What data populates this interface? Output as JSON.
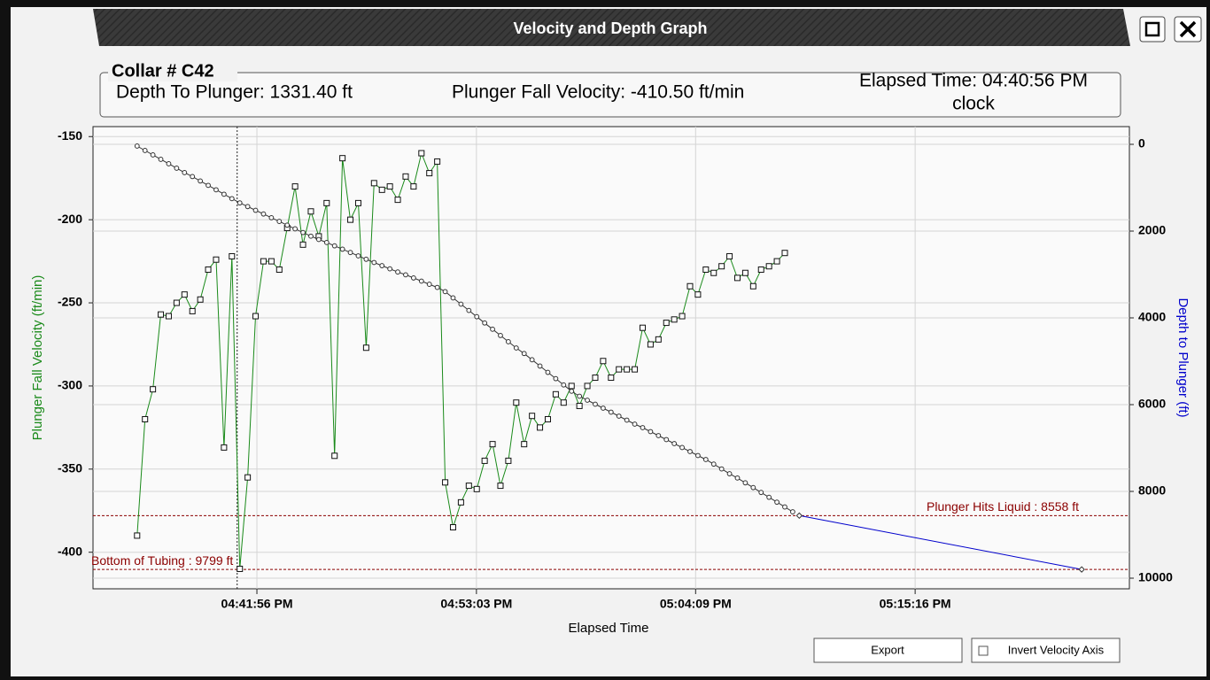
{
  "window": {
    "title": "Velocity and Depth Graph"
  },
  "header": {
    "collar": "Collar # C42",
    "depth": "Depth To Plunger: 1331.40 ft",
    "velocity": "Plunger Fall Velocity: -410.50 ft/min",
    "elapsed": "Elapsed Time: 04:40:56 PM",
    "mode": "clock"
  },
  "buttons": {
    "export": "Export",
    "invert": "Invert Velocity Axis"
  },
  "chart_data": {
    "type": "line",
    "x_label": "Elapsed Time",
    "y_label": "Plunger Fall Velocity   (ft/min)",
    "y2_label": "Depth to Plunger  (ft)",
    "xlim": [
      59618,
      62767
    ],
    "xticks": [
      {
        "value": 60116,
        "label": "04:41:56 PM"
      },
      {
        "value": 60783,
        "label": "04:53:03 PM"
      },
      {
        "value": 61449,
        "label": "05:04:09 PM"
      },
      {
        "value": 62116,
        "label": "05:15:16 PM"
      }
    ],
    "ylim": [
      -422,
      -144
    ],
    "yticks": [
      -150,
      -200,
      -250,
      -300,
      -350,
      -400
    ],
    "y2lim": [
      -408,
      10245
    ],
    "y2_inverted": true,
    "y2ticks": [
      0,
      2000,
      4000,
      6000,
      8000,
      10000
    ],
    "grid": true,
    "cursor_x": 60056,
    "x": [
      59752,
      59776,
      59800,
      59824,
      59848,
      59872,
      59896,
      59920,
      59944,
      59968,
      59992,
      60016,
      60040,
      60064,
      60088,
      60112,
      60136,
      60160,
      60184,
      60208,
      60232,
      60256,
      60280,
      60304,
      60328,
      60352,
      60376,
      60400,
      60424,
      60448,
      60472,
      60496,
      60520,
      60544,
      60568,
      60592,
      60616,
      60640,
      60664,
      60688,
      60712,
      60736,
      60760,
      60784,
      60808,
      60832,
      60856,
      60880,
      60904,
      60928,
      60952,
      60976,
      61000,
      61024,
      61048,
      61072,
      61096,
      61120,
      61144,
      61168,
      61192,
      61216,
      61240,
      61264,
      61288,
      61312,
      61336,
      61360,
      61384,
      61408,
      61432,
      61456,
      61480,
      61504,
      61528,
      61552,
      61576,
      61600,
      61624,
      61648,
      61672,
      61696,
      61720,
      61744
    ],
    "series": [
      {
        "color": "#1a8a1a",
        "marker": "square",
        "values": [
          -390,
          -320,
          -302,
          -257,
          -258,
          -250,
          -245,
          -255,
          -248,
          -230,
          -224,
          -337,
          -222,
          -410,
          -355,
          -258,
          -225,
          -225,
          -230,
          -205,
          -180,
          -215,
          -195,
          -210,
          -190,
          -342,
          -163,
          -200,
          -190,
          -277,
          -178,
          -182,
          -180,
          -188,
          -174,
          -180,
          -160,
          -172,
          -165,
          -358,
          -385,
          -370,
          -360,
          -362,
          -345,
          -335,
          -360,
          -345,
          -310,
          -335,
          -318,
          -325,
          -320,
          -305,
          -310,
          -300,
          -312,
          -300,
          -295,
          -285,
          -295,
          -290,
          -290,
          -290,
          -265,
          -275,
          -272,
          -262,
          -260,
          -258,
          -240,
          -245,
          -230,
          -232,
          -228,
          -222,
          -235,
          -232,
          -240,
          -230,
          -228,
          -225,
          -220,
          null
        ]
      },
      {
        "color": "#333333",
        "marker": "circle",
        "axis": "y2",
        "values": [
          40,
          142,
          244,
          346,
          448,
          550,
          652,
          743,
          845,
          946,
          1048,
          1150,
          1252,
          1350,
          1435,
          1521,
          1606,
          1692,
          1777,
          1863,
          1948,
          2034,
          2117,
          2194,
          2263,
          2340,
          2417,
          2494,
          2571,
          2649,
          2724,
          2797,
          2870,
          2943,
          3008,
          3080,
          3153,
          3226,
          3298,
          3395,
          3540,
          3684,
          3829,
          3973,
          4118,
          4262,
          4406,
          4550,
          4694,
          4822,
          4966,
          5111,
          5256,
          5401,
          5546,
          5691,
          5806,
          5898,
          5990,
          6081,
          6173,
          6265,
          6357,
          6449,
          6530,
          6622,
          6714,
          6806,
          6898,
          6989,
          7081,
          7173,
          7265,
          7371,
          7482,
          7593,
          7691,
          7802,
          7912,
          8024,
          8136,
          8248,
          8359,
          8471
        ]
      },
      {
        "color": "#0000cc",
        "marker": "diamond",
        "axis": "y2",
        "x": [
          61764,
          62622
        ],
        "values": [
          8558,
          9799
        ]
      }
    ],
    "annotations": [
      {
        "label": "Plunger Hits Liquid : 8558 ft",
        "value": 8558,
        "axis": "y2",
        "color": "#8b0000"
      },
      {
        "label": "Bottom of Tubing : 9799 ft",
        "value": 9799,
        "axis": "y2",
        "color": "#8b0000"
      }
    ]
  }
}
